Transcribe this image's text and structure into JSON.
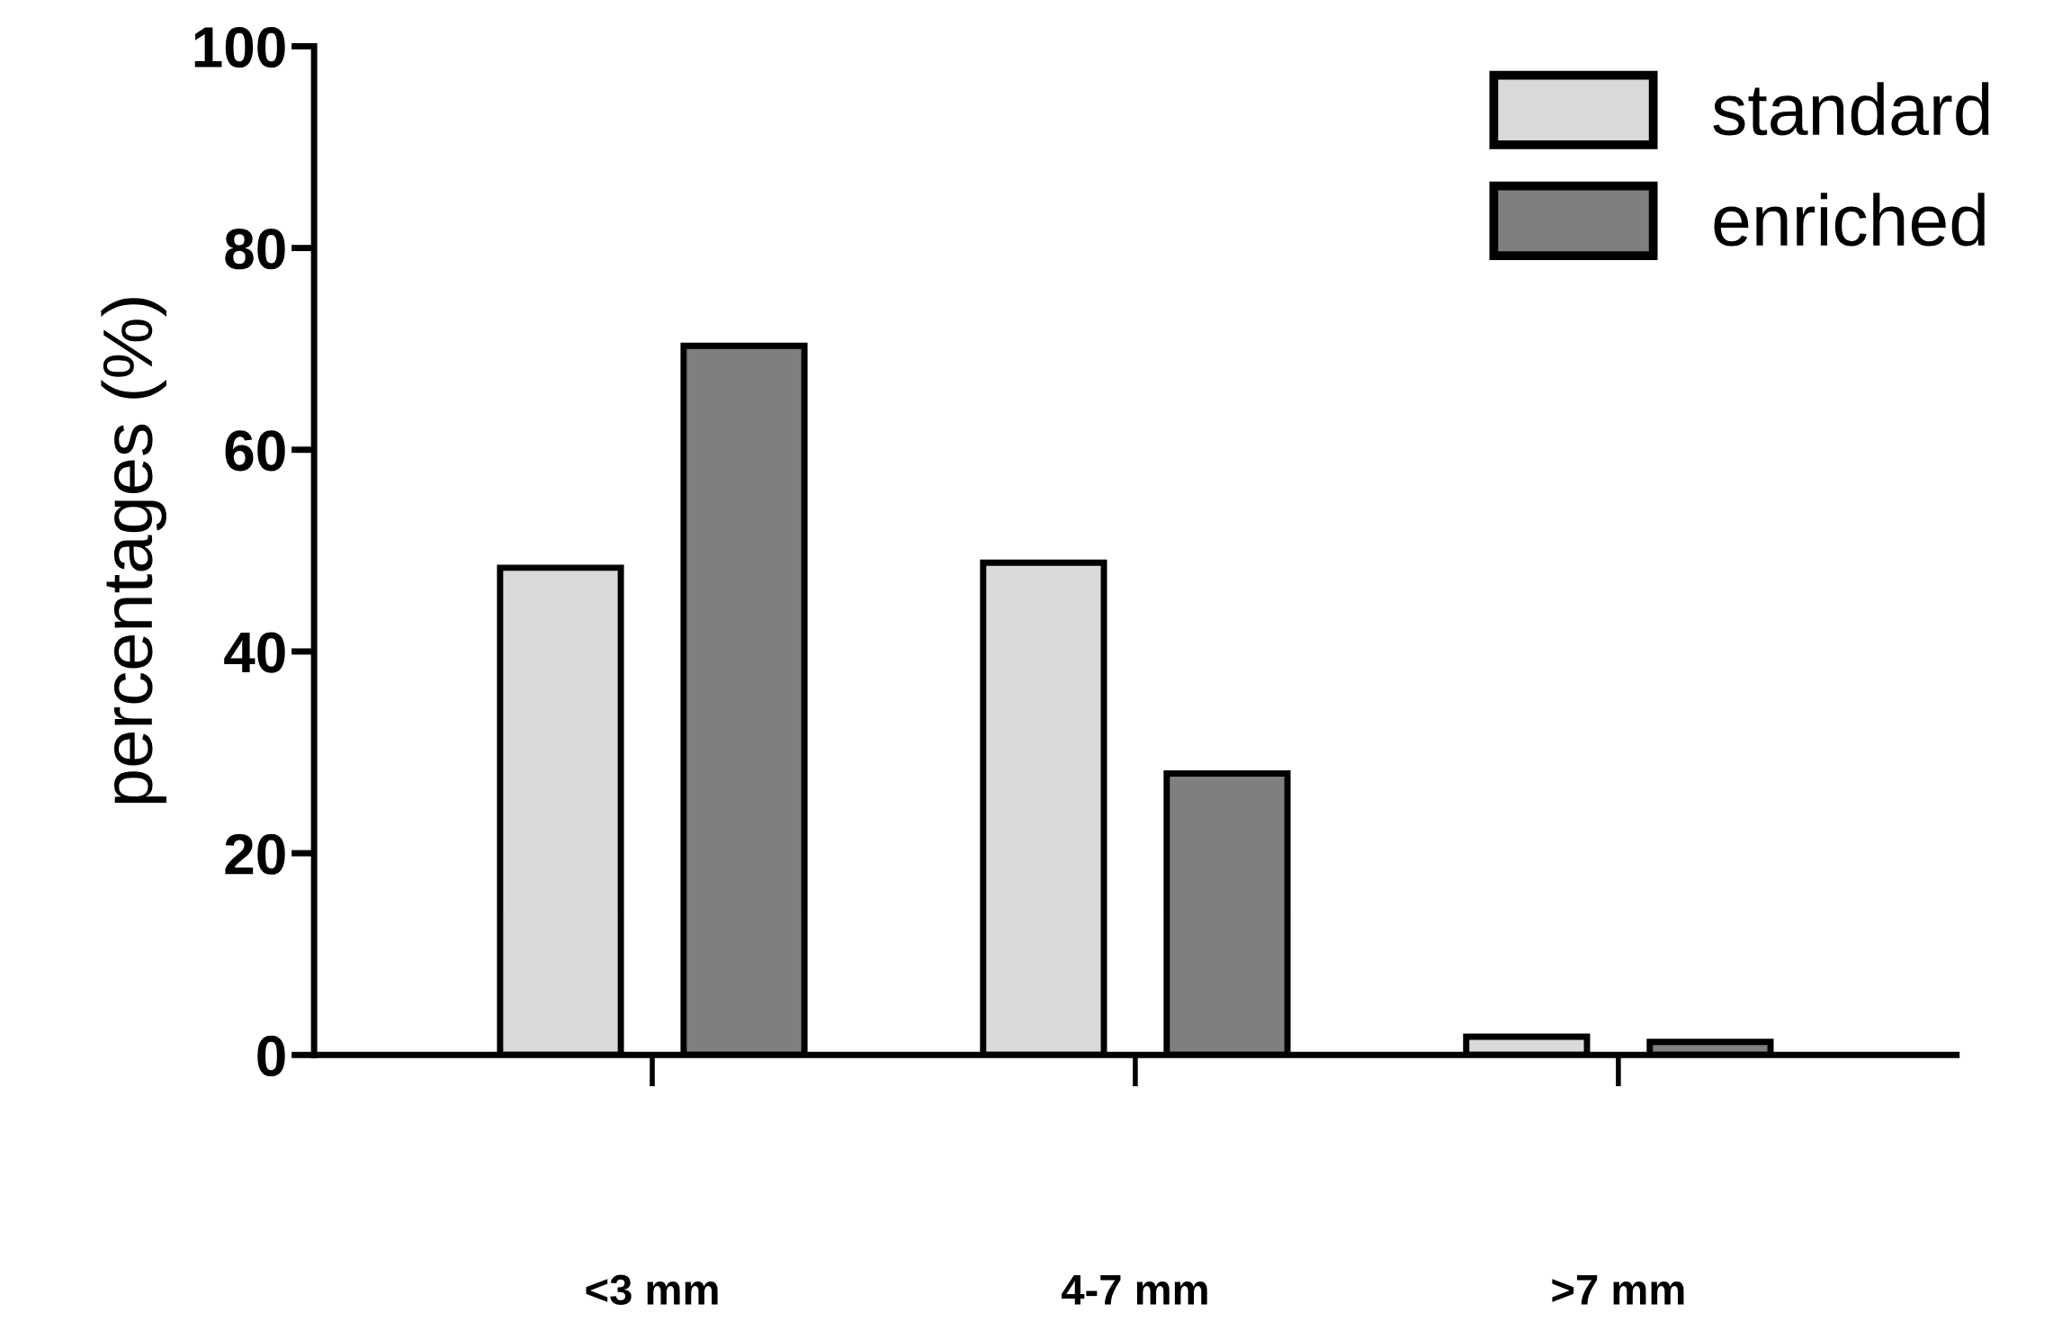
{
  "chart_data": {
    "type": "bar",
    "ylabel": "percentages (%)",
    "categories": [
      "<3 mm",
      "4-7 mm",
      ">7 mm"
    ],
    "series": [
      {
        "name": "standard",
        "color": "#d9d9d9",
        "values": [
          48.3,
          48.8,
          1.8
        ]
      },
      {
        "name": "enriched",
        "color": "#7f7f7f",
        "values": [
          70.3,
          27.9,
          1.3
        ]
      }
    ],
    "ylim": [
      0,
      100
    ],
    "yticks": [
      0,
      20,
      40,
      60,
      80,
      100
    ],
    "grid": false,
    "legend": "top right"
  }
}
